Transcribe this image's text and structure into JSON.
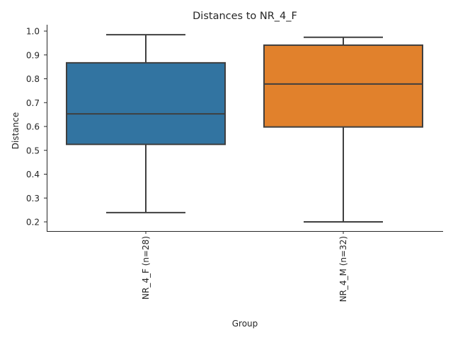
{
  "chart_data": {
    "type": "box",
    "title": "Distances to NR_4_F",
    "xlabel": "Group",
    "ylabel": "Distance",
    "ylim": [
      0.161,
      1.027
    ],
    "yticks": [
      "0.2",
      "0.3",
      "0.4",
      "0.5",
      "0.6",
      "0.7",
      "0.8",
      "0.9",
      "1.0"
    ],
    "grid": false,
    "categories": [
      "NR_4_F (n=28)",
      "NR_4_M (n=32)"
    ],
    "boxes": [
      {
        "name": "NR_4_F (n=28)",
        "whisker_low": 0.239,
        "q1": 0.525,
        "median": 0.653,
        "q3": 0.867,
        "whisker_high": 0.985,
        "color": "#3274a1"
      },
      {
        "name": "NR_4_M (n=32)",
        "whisker_low": 0.2,
        "q1": 0.598,
        "median": 0.778,
        "q3": 0.941,
        "whisker_high": 0.974,
        "color": "#e1812c"
      }
    ]
  }
}
